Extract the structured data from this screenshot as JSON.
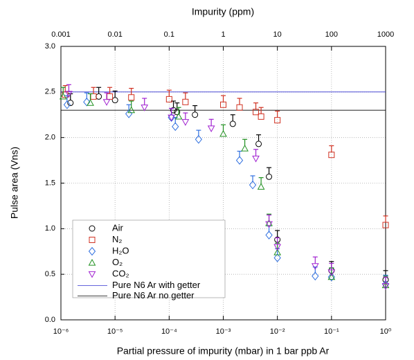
{
  "chart_data": {
    "type": "scatter",
    "title": "Impurity (ppm)",
    "x_label": "Partial pressure of impurity (mbar) in 1 bar ppb Ar",
    "y_label": "Pulse area (Vns)",
    "x_log": true,
    "grid": true,
    "xlim": [
      1e-06,
      1
    ],
    "xticks": [
      {
        "value": 1e-06,
        "label": "10⁻⁶"
      },
      {
        "value": 1e-05,
        "label": "10⁻⁵"
      },
      {
        "value": 0.0001,
        "label": "10⁻⁴"
      },
      {
        "value": 0.001,
        "label": "10⁻³"
      },
      {
        "value": 0.01,
        "label": "10⁻²"
      },
      {
        "value": 0.1,
        "label": "10⁻¹"
      },
      {
        "value": 1,
        "label": "10⁰"
      }
    ],
    "x2lim": [
      0.001,
      1000
    ],
    "x2ticks": [
      0.001,
      0.01,
      0.1,
      1,
      10,
      100,
      1000
    ],
    "ylim": [
      0,
      3
    ],
    "yticks": [
      {
        "value": 0,
        "label": "0.0"
      },
      0.5,
      {
        "value": 1,
        "label": "1.0"
      },
      1.5,
      {
        "value": 2,
        "label": "2.0"
      },
      2.5,
      {
        "value": 3,
        "label": "3.0"
      }
    ],
    "series": [
      {
        "name": "Air",
        "color": "#000000",
        "marker": "circle",
        "error": 0.1,
        "x": [
          1.5e-06,
          5e-06,
          1e-05,
          0.00012,
          0.00014,
          0.0003,
          0.0015,
          0.0045,
          0.007,
          0.01,
          0.1,
          1
        ],
        "values": [
          2.38,
          2.45,
          2.41,
          2.3,
          2.28,
          2.25,
          2.15,
          1.93,
          1.57,
          0.88,
          0.54,
          0.44
        ]
      },
      {
        "name": "N₂",
        "color": "#d03020",
        "marker": "square",
        "error": 0.1,
        "x": [
          1.2e-06,
          4e-06,
          8e-06,
          2e-05,
          0.0001,
          0.0002,
          0.001,
          0.002,
          0.004,
          0.005,
          0.01,
          0.1,
          1
        ],
        "values": [
          2.47,
          2.45,
          2.45,
          2.44,
          2.42,
          2.39,
          2.36,
          2.33,
          2.28,
          2.23,
          2.19,
          1.81,
          1.04
        ]
      },
      {
        "name": "H₂O",
        "color": "#3070e0",
        "marker": "diamond",
        "error": 0.1,
        "x": [
          1.3e-06,
          3e-06,
          1.8e-05,
          0.00011,
          0.00013,
          0.00035,
          0.002,
          0.0035,
          0.007,
          0.01,
          0.05,
          0.1,
          1
        ],
        "values": [
          2.36,
          2.39,
          2.26,
          2.22,
          2.12,
          1.98,
          1.75,
          1.48,
          0.93,
          0.68,
          0.48,
          0.47,
          0.39
        ]
      },
      {
        "name": "O₂",
        "color": "#209020",
        "marker": "triangle",
        "error": 0.1,
        "x": [
          1.1e-06,
          3.5e-06,
          2e-05,
          0.00015,
          0.001,
          0.0025,
          0.005,
          0.007,
          0.01,
          0.1,
          1
        ],
        "values": [
          2.45,
          2.38,
          2.3,
          2.23,
          2.04,
          1.88,
          1.46,
          1.06,
          0.74,
          0.47,
          0.38
        ]
      },
      {
        "name": "CO₂",
        "color": "#a020d0",
        "marker": "triangle-down",
        "error": 0.1,
        "x": [
          1.4e-06,
          7e-06,
          3.5e-05,
          0.00011,
          0.0002,
          0.0006,
          0.004,
          0.007,
          0.01,
          0.05,
          0.1,
          1
        ],
        "values": [
          2.48,
          2.39,
          2.33,
          2.22,
          2.17,
          2.1,
          1.77,
          1.05,
          0.8,
          0.59,
          0.52,
          0.37
        ]
      }
    ],
    "reference_lines": [
      {
        "name": "Pure N6 Ar with getter",
        "color": "#3030d0",
        "value": 2.5
      },
      {
        "name": "Pure N6 Ar no getter",
        "color": "#000000",
        "value": 2.3
      }
    ]
  }
}
